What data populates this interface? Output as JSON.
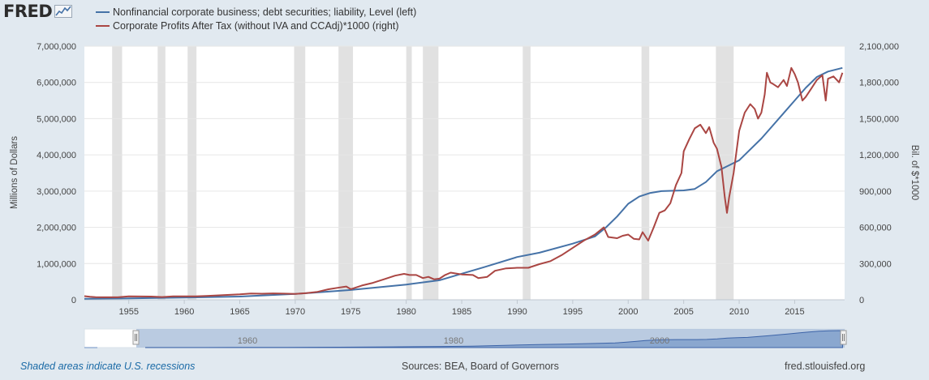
{
  "header": {
    "logo_text": "FRED",
    "logo_icon": "chart-line-icon"
  },
  "legend": {
    "items": [
      {
        "label": "Nonfinancial corporate business; debt securities; liability, Level (left)",
        "color": "#4572a7"
      },
      {
        "label": "Corporate Profits After Tax (without IVA and CCAdj)*1000 (right)",
        "color": "#aa4643"
      }
    ]
  },
  "footer": {
    "recession_note": "Shaded areas indicate U.S. recessions",
    "sources": "Sources: BEA, Board of Governors",
    "site": "fred.stlouisfed.org"
  },
  "navigator": {
    "labels": [
      "1960",
      "1980",
      "2000"
    ]
  },
  "chart_data": {
    "type": "line",
    "ylabel_left": "Millions of Dollars",
    "ylabel_right": "Bil. of $*1000",
    "ylim_left": [
      0,
      7000000
    ],
    "ylim_right": [
      0,
      2100000
    ],
    "xlim": [
      1951.0,
      2019.5
    ],
    "x_ticks": [
      "1955",
      "1960",
      "1965",
      "1970",
      "1975",
      "1980",
      "1985",
      "1990",
      "1995",
      "2000",
      "2005",
      "2010",
      "2015"
    ],
    "y_ticks_left": [
      "0",
      "1,000,000",
      "2,000,000",
      "3,000,000",
      "4,000,000",
      "5,000,000",
      "6,000,000",
      "7,000,000"
    ],
    "y_ticks_right": [
      "0",
      "300,000",
      "600,000",
      "900,000",
      "1,200,000",
      "1,500,000",
      "1,800,000",
      "2,100,000"
    ],
    "recessions": [
      [
        1953.5,
        1954.4
      ],
      [
        1957.6,
        1958.3
      ],
      [
        1960.3,
        1961.1
      ],
      [
        1969.9,
        1970.9
      ],
      [
        1973.9,
        1975.2
      ],
      [
        1980.0,
        1980.5
      ],
      [
        1981.5,
        1982.9
      ],
      [
        1990.5,
        1991.2
      ],
      [
        2001.2,
        2001.9
      ],
      [
        2007.9,
        2009.5
      ]
    ],
    "grid": true,
    "series": [
      {
        "name": "Nonfinancial corporate business; debt securities; liability, Level (left)",
        "axis": "left",
        "color": "#4572a7",
        "points": [
          [
            1951.0,
            30000
          ],
          [
            1955,
            40000
          ],
          [
            1960,
            60000
          ],
          [
            1965,
            90000
          ],
          [
            1970,
            160000
          ],
          [
            1975,
            270000
          ],
          [
            1980,
            420000
          ],
          [
            1983,
            540000
          ],
          [
            1985,
            720000
          ],
          [
            1987,
            900000
          ],
          [
            1990,
            1180000
          ],
          [
            1992,
            1300000
          ],
          [
            1995,
            1550000
          ],
          [
            1997,
            1750000
          ],
          [
            1998,
            2000000
          ],
          [
            1999,
            2300000
          ],
          [
            2000,
            2650000
          ],
          [
            2001,
            2850000
          ],
          [
            2002,
            2950000
          ],
          [
            2003,
            3000000
          ],
          [
            2005,
            3020000
          ],
          [
            2006,
            3060000
          ],
          [
            2007,
            3250000
          ],
          [
            2008,
            3550000
          ],
          [
            2009,
            3700000
          ],
          [
            2010,
            3850000
          ],
          [
            2011,
            4150000
          ],
          [
            2012,
            4450000
          ],
          [
            2013,
            4800000
          ],
          [
            2014,
            5150000
          ],
          [
            2015,
            5500000
          ],
          [
            2016,
            5850000
          ],
          [
            2017,
            6150000
          ],
          [
            2018,
            6300000
          ],
          [
            2019.3,
            6400000
          ]
        ]
      },
      {
        "name": "Corporate Profits After Tax (without IVA and CCAdj)*1000 (right)",
        "axis": "right",
        "color": "#aa4643",
        "points": [
          [
            1951.0,
            30000
          ],
          [
            1951.5,
            25000
          ],
          [
            1952,
            22000
          ],
          [
            1953,
            21000
          ],
          [
            1954,
            21000
          ],
          [
            1955,
            28000
          ],
          [
            1957,
            27000
          ],
          [
            1958,
            23000
          ],
          [
            1959,
            29000
          ],
          [
            1960,
            28000
          ],
          [
            1961,
            28000
          ],
          [
            1962,
            32000
          ],
          [
            1965,
            45000
          ],
          [
            1966,
            52000
          ],
          [
            1967,
            50000
          ],
          [
            1968,
            53000
          ],
          [
            1969,
            51000
          ],
          [
            1970,
            48000
          ],
          [
            1971,
            56000
          ],
          [
            1972,
            66000
          ],
          [
            1973,
            87000
          ],
          [
            1974,
            102000
          ],
          [
            1974.6,
            110000
          ],
          [
            1975.0,
            88000
          ],
          [
            1976,
            118000
          ],
          [
            1977,
            140000
          ],
          [
            1978,
            170000
          ],
          [
            1979,
            200000
          ],
          [
            1979.8,
            215000
          ],
          [
            1980.3,
            205000
          ],
          [
            1980.9,
            205000
          ],
          [
            1981.5,
            180000
          ],
          [
            1982.0,
            190000
          ],
          [
            1982.5,
            170000
          ],
          [
            1983.0,
            175000
          ],
          [
            1983.5,
            205000
          ],
          [
            1984,
            225000
          ],
          [
            1985,
            210000
          ],
          [
            1986,
            205000
          ],
          [
            1986.5,
            180000
          ],
          [
            1987.3,
            190000
          ],
          [
            1988,
            240000
          ],
          [
            1989,
            260000
          ],
          [
            1990,
            265000
          ],
          [
            1991,
            265000
          ],
          [
            1992,
            295000
          ],
          [
            1993,
            320000
          ],
          [
            1994,
            370000
          ],
          [
            1995,
            430000
          ],
          [
            1996,
            490000
          ],
          [
            1997,
            540000
          ],
          [
            1997.8,
            600000
          ],
          [
            1998.2,
            520000
          ],
          [
            1999,
            510000
          ],
          [
            1999.5,
            530000
          ],
          [
            2000,
            540000
          ],
          [
            2000.5,
            505000
          ],
          [
            2001,
            500000
          ],
          [
            2001.3,
            560000
          ],
          [
            2001.8,
            490000
          ],
          [
            2002.3,
            600000
          ],
          [
            2002.8,
            720000
          ],
          [
            2003.3,
            740000
          ],
          [
            2003.8,
            800000
          ],
          [
            2004.3,
            950000
          ],
          [
            2004.8,
            1050000
          ],
          [
            2005.0,
            1230000
          ],
          [
            2005.5,
            1330000
          ],
          [
            2006,
            1420000
          ],
          [
            2006.5,
            1450000
          ],
          [
            2007.0,
            1380000
          ],
          [
            2007.3,
            1430000
          ],
          [
            2007.7,
            1300000
          ],
          [
            2008.0,
            1250000
          ],
          [
            2008.4,
            1100000
          ],
          [
            2008.7,
            850000
          ],
          [
            2008.9,
            720000
          ],
          [
            2009.1,
            850000
          ],
          [
            2009.5,
            1050000
          ],
          [
            2010,
            1400000
          ],
          [
            2010.5,
            1550000
          ],
          [
            2011,
            1620000
          ],
          [
            2011.4,
            1580000
          ],
          [
            2011.7,
            1500000
          ],
          [
            2012.0,
            1550000
          ],
          [
            2012.3,
            1700000
          ],
          [
            2012.5,
            1880000
          ],
          [
            2012.8,
            1800000
          ],
          [
            2013,
            1790000
          ],
          [
            2013.5,
            1760000
          ],
          [
            2014,
            1820000
          ],
          [
            2014.3,
            1770000
          ],
          [
            2014.7,
            1920000
          ],
          [
            2015,
            1870000
          ],
          [
            2015.3,
            1800000
          ],
          [
            2015.7,
            1650000
          ],
          [
            2016,
            1680000
          ],
          [
            2016.5,
            1750000
          ],
          [
            2017,
            1820000
          ],
          [
            2017.5,
            1860000
          ],
          [
            2017.8,
            1650000
          ],
          [
            2018,
            1830000
          ],
          [
            2018.5,
            1850000
          ],
          [
            2019,
            1800000
          ],
          [
            2019.3,
            1880000
          ]
        ]
      }
    ]
  }
}
